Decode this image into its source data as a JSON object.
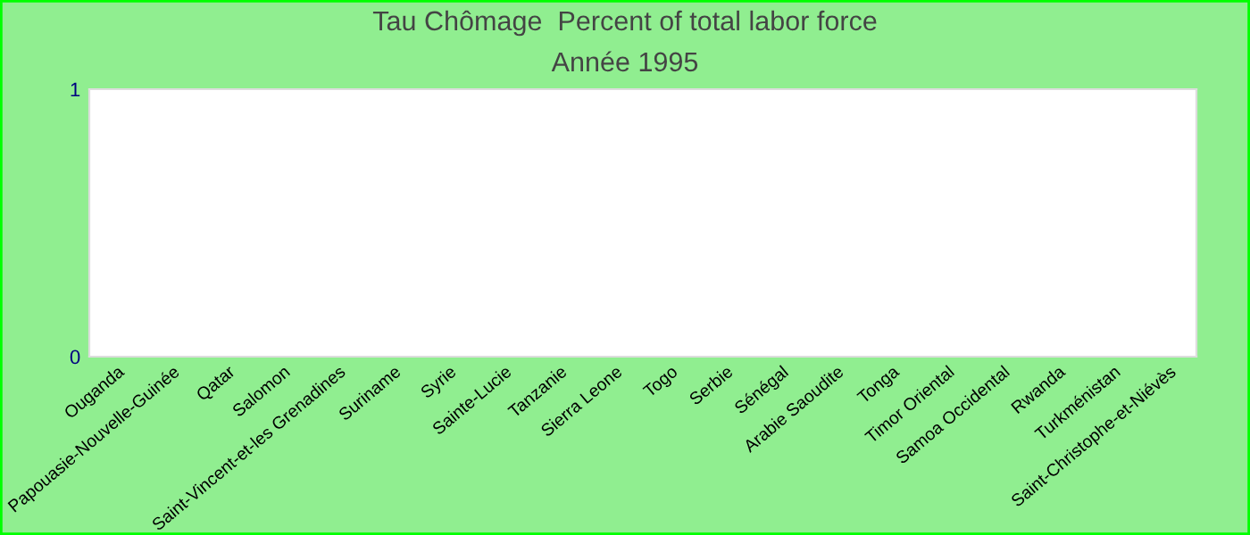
{
  "chart_data": {
    "type": "bar",
    "title": "Tau Chômage  Percent of total labor force",
    "subtitle": "Année 1995",
    "categories": [
      "Ouganda",
      "Papouasie-Nouvelle-Guinée",
      "Qatar",
      "Salomon",
      "Saint-Vincent-et-les Grenadines",
      "Suriname",
      "Syrie",
      "Sainte-Lucie",
      "Tanzanie",
      "Sierra Leone",
      "Togo",
      "Serbie",
      "Sénégal",
      "Arabie Saoudite",
      "Tonga",
      "Timor Oriental",
      "Samoa Occidental",
      "Rwanda",
      "Turkménistan",
      "Saint-Christophe-et-Niévès"
    ],
    "values": [
      null,
      null,
      null,
      null,
      null,
      null,
      null,
      null,
      null,
      null,
      null,
      null,
      null,
      null,
      null,
      null,
      null,
      null,
      null,
      null
    ],
    "ylim": [
      0,
      1
    ],
    "yticks": [
      0,
      1
    ],
    "grid": false,
    "legend": false
  }
}
